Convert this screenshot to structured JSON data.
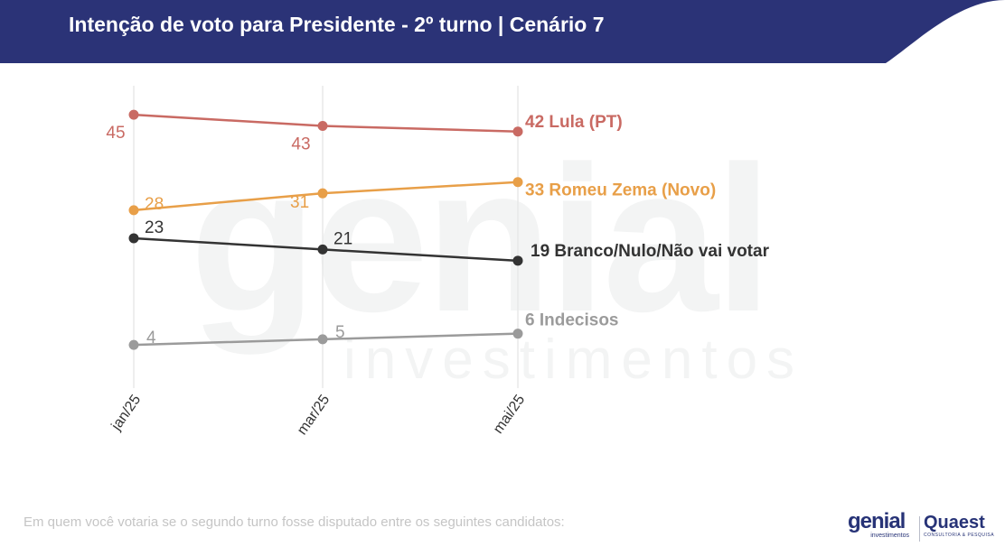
{
  "header": {
    "title": "Intenção de voto para Presidente - 2º turno | Cenário 7",
    "band_color": "#2b3377"
  },
  "chart_data": {
    "type": "line",
    "title": "Intenção de voto para Presidente - 2º turno | Cenário 7",
    "categories": [
      "jan/25",
      "mar/25",
      "mai/25"
    ],
    "grid": "vertical",
    "series": [
      {
        "name": "Lula (PT)",
        "values": [
          45,
          43,
          42
        ],
        "end_label": "42 Lula (PT)",
        "color": "#c96a63",
        "label_pos": "below"
      },
      {
        "name": "Romeu Zema (Novo)",
        "values": [
          28,
          31,
          33
        ],
        "end_label": "33 Romeu Zema (Novo)",
        "color": "#e89f48",
        "label_pos": "right"
      },
      {
        "name": "Branco/Nulo/Não vai votar",
        "values": [
          23,
          21,
          19
        ],
        "end_label": "19 Branco/Nulo/Não vai votar",
        "color": "#333333",
        "label_pos": "above"
      },
      {
        "name": "Indecisos",
        "values": [
          4,
          5,
          6
        ],
        "end_label": "6 Indecisos",
        "color": "#9b9b9b",
        "label_pos": "right"
      }
    ]
  },
  "footer": {
    "question": "Em quem você votaria se o segundo turno fosse disputado entre os seguintes candidatos:"
  },
  "logos": {
    "genial_main": "genial",
    "genial_sub": "investimentos",
    "quaest_main": "Quaest",
    "quaest_sub": "CONSULTORIA & PESQUISA"
  },
  "watermark": {
    "main": "genial",
    "sub": "investimentos"
  }
}
